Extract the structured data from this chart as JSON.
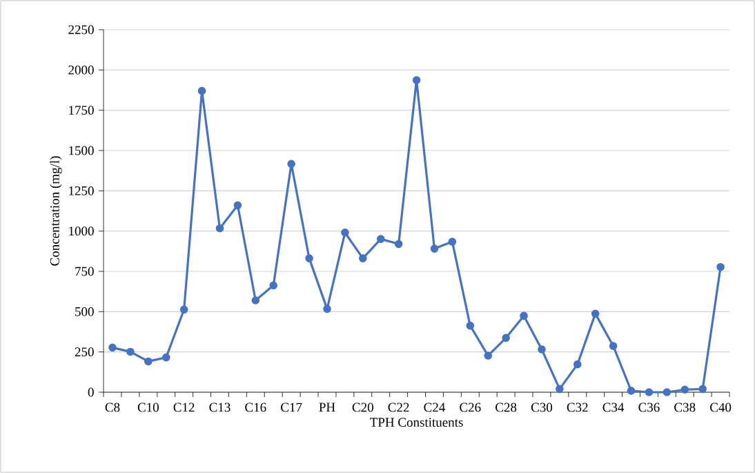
{
  "chart_data": {
    "type": "line",
    "xlabel": "TPH Constituents",
    "ylabel": "Concentration (mg/l)",
    "categories": [
      "C8",
      null,
      "C10",
      null,
      "C12",
      null,
      "C13",
      null,
      "C16",
      null,
      "C17",
      null,
      "PH",
      null,
      "C20",
      null,
      "C22",
      null,
      "C24",
      null,
      "C26",
      null,
      "C28",
      null,
      "C30",
      null,
      "C32",
      null,
      "C34",
      null,
      "C36",
      null,
      "C38",
      null,
      "C40"
    ],
    "series": [
      {
        "color": "#4472c4",
        "values": [
          277,
          251,
          191,
          216,
          513,
          1870,
          1017,
          1160,
          570,
          663,
          1417,
          831,
          517,
          991,
          831,
          951,
          920,
          1937,
          891,
          934,
          413,
          227,
          337,
          474,
          266,
          20,
          173,
          487,
          287,
          9,
          0,
          0,
          16,
          20,
          777
        ]
      }
    ],
    "ylim": [
      0,
      2250
    ],
    "yticks": [
      0,
      250,
      500,
      750,
      1000,
      1250,
      1500,
      1750,
      2000,
      2250
    ],
    "grid": "y",
    "marker": "circle",
    "line_style": "solid"
  }
}
